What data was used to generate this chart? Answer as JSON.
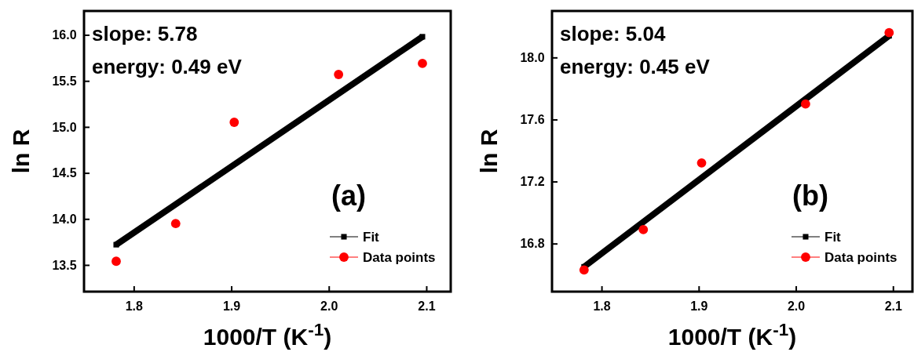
{
  "chart_data": [
    {
      "type": "scatter",
      "xlabel": "1000/T (K$^{-1}$)",
      "ylabel": "ln R",
      "xlim": [
        1.749,
        2.125
      ],
      "ylim": [
        13.21,
        16.26
      ],
      "xticks": [
        1.8,
        1.9,
        {
          "value": 2,
          "label": "2.0"
        },
        2.1
      ],
      "yticks": [
        13.5,
        {
          "value": 14,
          "label": "14.0"
        },
        14.5,
        {
          "value": 15,
          "label": "15.0"
        },
        15.5,
        {
          "value": 16,
          "label": "16.0"
        }
      ],
      "legend": "bottom right",
      "grid": false,
      "annotations": [
        "slope: 5.78",
        "energy: 0.49 eV",
        "(a)"
      ],
      "series": [
        {
          "name": "Fit",
          "type": "line",
          "marker": "square",
          "color": "#000000",
          "x": [
            1.782,
            2.096
          ],
          "values": [
            13.72,
            15.98
          ]
        },
        {
          "name": "Data points",
          "type": "scatter",
          "marker": "circle",
          "color": "#ff0000",
          "x": [
            1.782,
            1.843,
            1.903,
            2.01,
            2.096
          ],
          "values": [
            13.54,
            13.95,
            15.05,
            15.57,
            15.69
          ]
        }
      ]
    },
    {
      "type": "scatter",
      "xlabel": "1000/T (K$^{-1}$)",
      "ylabel": "ln R",
      "xlim": [
        1.749,
        2.12
      ],
      "ylim": [
        16.49,
        18.3
      ],
      "xticks": [
        1.8,
        1.9,
        {
          "value": 2,
          "label": "2.0"
        },
        2.1
      ],
      "yticks": [
        16.8,
        17.2,
        17.6,
        {
          "value": 18,
          "label": "18.0"
        }
      ],
      "legend": "bottom right",
      "grid": false,
      "annotations": [
        "slope: 5.04",
        "energy: 0.45 eV",
        "(b)"
      ],
      "series": [
        {
          "name": "Fit",
          "type": "line",
          "marker": "square",
          "color": "#000000",
          "x": [
            1.782,
            2.096
          ],
          "values": [
            16.65,
            18.14
          ]
        },
        {
          "name": "Data points",
          "type": "scatter",
          "marker": "circle",
          "color": "#ff0000",
          "x": [
            1.782,
            1.843,
            1.903,
            2.01,
            2.096
          ],
          "values": [
            16.63,
            16.89,
            17.32,
            17.7,
            18.16
          ]
        }
      ]
    }
  ]
}
